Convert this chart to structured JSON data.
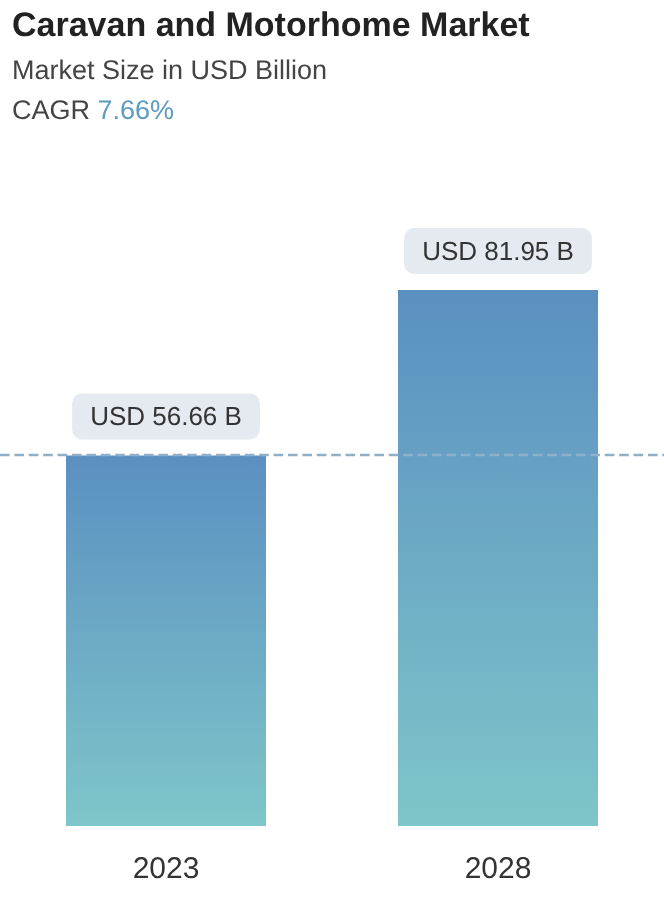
{
  "chart_data": {
    "type": "bar",
    "title": "Caravan and Motorhome Market",
    "subtitle": "Market Size in USD Billion",
    "annotations": [
      "CAGR 7.66%"
    ],
    "categories": [
      "2023",
      "2028"
    ],
    "series": [
      {
        "color": "#5b8fc1",
        "values": [
          56.66,
          81.95
        ],
        "value_labels": [
          "USD 56.66 B",
          "USD 81.95 B"
        ]
      }
    ],
    "ref_lines": [
      {
        "axis": "y",
        "value": 56.66,
        "color": "#8fb0c8",
        "line_style": "dashed"
      }
    ],
    "grid": false
  }
}
